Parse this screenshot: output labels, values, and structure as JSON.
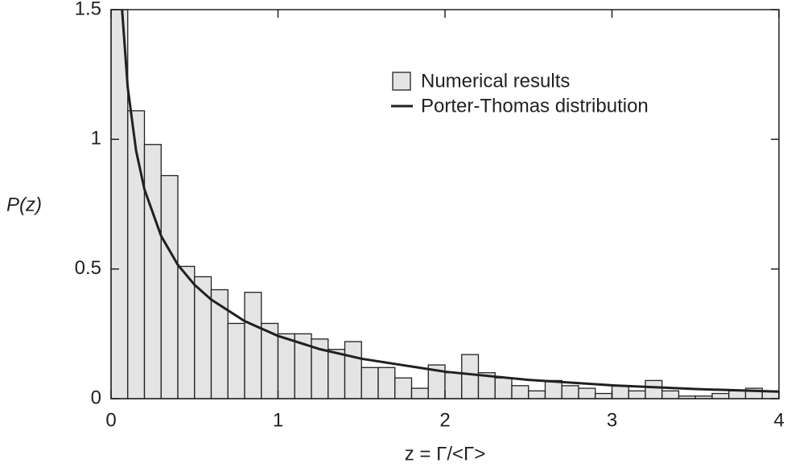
{
  "chart_data": {
    "type": "histogram",
    "x_label": "z = Γ/<Γ>",
    "y_label": "P(z)",
    "bins": [
      0,
      0.1,
      0.2,
      0.3,
      0.4,
      0.5,
      0.6,
      0.7,
      0.8,
      0.9,
      1,
      1.1,
      1.2,
      1.3,
      1.4,
      1.5,
      1.6,
      1.7,
      1.8,
      1.9,
      2,
      2.1,
      2.2,
      2.3,
      2.4,
      2.5,
      2.6,
      2.7,
      2.8,
      2.9,
      3,
      3.1,
      3.2,
      3.3,
      3.4,
      3.5,
      3.6,
      3.7,
      3.8,
      3.9,
      4
    ],
    "series": [
      {
        "name": "Numerical results",
        "color": "#e4e4e4",
        "values": [
          1.5,
          1.11,
          0.98,
          0.86,
          0.51,
          0.47,
          0.42,
          0.29,
          0.41,
          0.29,
          0.25,
          0.25,
          0.23,
          0.19,
          0.22,
          0.12,
          0.12,
          0.08,
          0.04,
          0.13,
          0.1,
          0.17,
          0.1,
          0.08,
          0.05,
          0.03,
          0.07,
          0.05,
          0.04,
          0.02,
          0.05,
          0.03,
          0.07,
          0.03,
          0.01,
          0.01,
          0.02,
          0.03,
          0.04,
          0.03
        ]
      },
      {
        "name": "Porter-Thomas distribution",
        "color": "#231f20",
        "x": [
          0.066,
          0.1,
          0.15,
          0.2,
          0.3,
          0.4,
          0.5,
          0.6,
          0.8,
          1,
          1.25,
          1.5,
          2,
          2.5,
          3,
          3.5,
          4
        ],
        "values": [
          1.5,
          1.2,
          0.956,
          0.807,
          0.627,
          0.516,
          0.439,
          0.382,
          0.299,
          0.242,
          0.191,
          0.154,
          0.104,
          0.0723,
          0.0514,
          0.0371,
          0.027
        ]
      }
    ],
    "xlim": [
      0,
      4
    ],
    "ylim": [
      0,
      1.5
    ],
    "xticks": [
      0,
      1,
      2,
      3,
      4
    ],
    "yticks": [
      0,
      0.5,
      1,
      1.5
    ],
    "legend": "upper right"
  }
}
